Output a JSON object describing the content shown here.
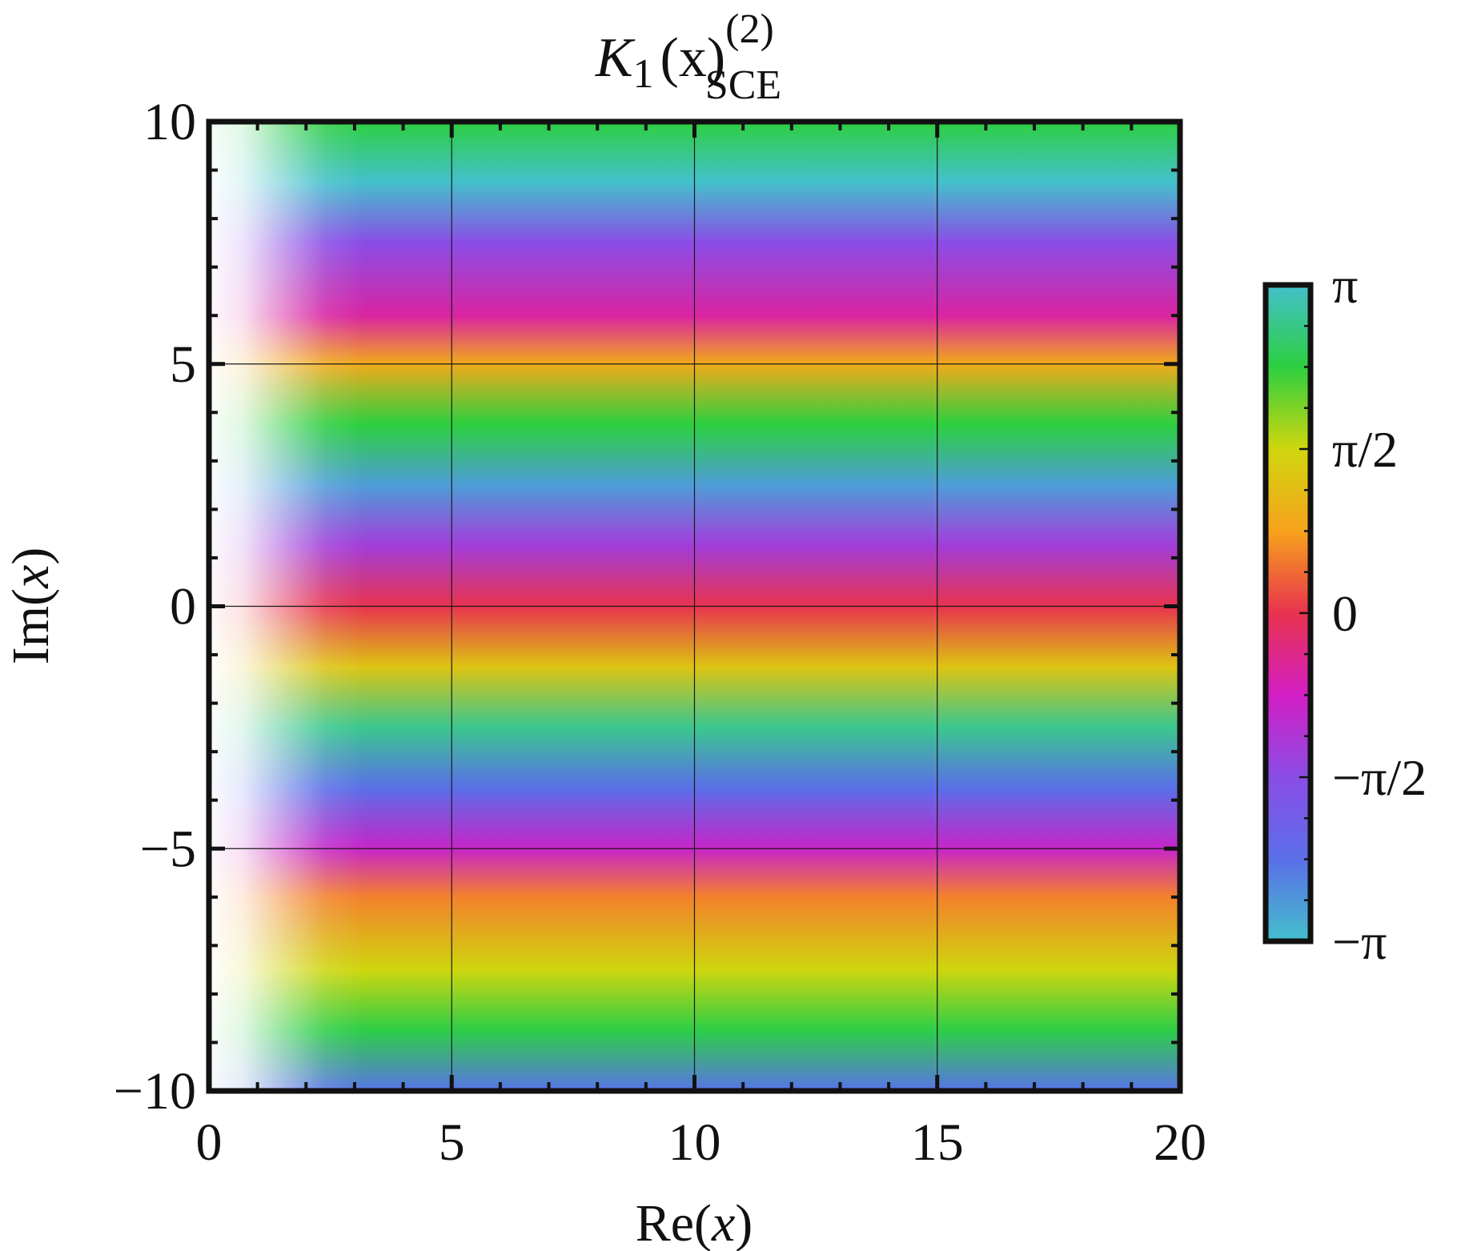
{
  "chart_data": {
    "type": "heatmap",
    "title": {
      "func": "K",
      "func_sub": "1",
      "arg": "(x)",
      "sup": "(2)",
      "sub": "SCE"
    },
    "xlabel": {
      "prefix": "Re(",
      "var": "x",
      "suffix": ")"
    },
    "ylabel": {
      "prefix": "Im(",
      "var": "x",
      "suffix": ")"
    },
    "xlim": [
      0,
      20
    ],
    "ylim": [
      -10,
      10
    ],
    "x_ticks": [
      "0",
      "5",
      "10",
      "15",
      "20"
    ],
    "x_tick_values": [
      0,
      5,
      10,
      15,
      20
    ],
    "y_ticks": [
      "10",
      "5",
      "0",
      "−5",
      "−10"
    ],
    "y_tick_values": [
      10,
      5,
      0,
      -5,
      -10
    ],
    "grid": true,
    "colorbar": {
      "labels": [
        "π",
        "π/2",
        "0",
        "−π/2",
        "−π"
      ],
      "values": [
        3.14159,
        1.5708,
        0,
        -1.5708,
        -3.14159
      ],
      "min": -3.14159,
      "max": 3.14159,
      "stops": [
        {
          "phase": -3.14159,
          "color": "#44c0cc"
        },
        {
          "phase": -2.36,
          "color": "#5a6fe8"
        },
        {
          "phase": -1.5708,
          "color": "#8a4de6"
        },
        {
          "phase": -0.785,
          "color": "#d21ec4"
        },
        {
          "phase": 0,
          "color": "#e8334e"
        },
        {
          "phase": 0.785,
          "color": "#f7a21c"
        },
        {
          "phase": 1.5708,
          "color": "#cfd60e"
        },
        {
          "phase": 2.36,
          "color": "#2ccf40"
        },
        {
          "phase": 3.14159,
          "color": "#44c0cc"
        }
      ]
    },
    "phase_bands": [
      {
        "im": 10.0,
        "phase": 2.36
      },
      {
        "im": 8.75,
        "phase": 3.14159
      },
      {
        "im": 7.5,
        "phase": -1.5708
      },
      {
        "im": 6.0,
        "phase": -0.55
      },
      {
        "im": 5.0,
        "phase": 0.9
      },
      {
        "im": 3.75,
        "phase": 2.36
      },
      {
        "im": 2.5,
        "phase": -2.8
      },
      {
        "im": 1.25,
        "phase": -1.3
      },
      {
        "im": 0.0,
        "phase": 0.0
      },
      {
        "im": -1.25,
        "phase": 1.3
      },
      {
        "im": -2.5,
        "phase": 2.8
      },
      {
        "im": -3.75,
        "phase": -2.36
      },
      {
        "im": -5.0,
        "phase": -0.9
      },
      {
        "im": -6.0,
        "phase": 0.55
      },
      {
        "im": -7.5,
        "phase": 1.5708
      },
      {
        "im": -8.75,
        "phase": 2.4
      },
      {
        "im": -10.0,
        "phase": -2.4
      }
    ],
    "fade_near_origin": {
      "fade_until_re": 3.0,
      "white_at_re": 0.2
    }
  }
}
